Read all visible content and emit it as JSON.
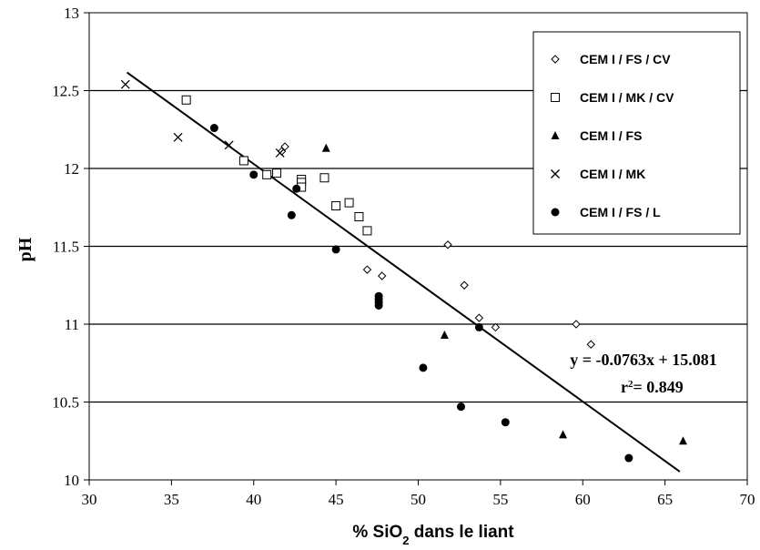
{
  "chart_data": {
    "type": "scatter",
    "xlabel_parts": [
      "% SiO",
      "2",
      " dans le liant"
    ],
    "ylabel": "pH",
    "xlim": [
      30,
      70
    ],
    "ylim": [
      10,
      13
    ],
    "xticks": [
      30,
      35,
      40,
      45,
      50,
      55,
      60,
      65,
      70
    ],
    "yticks": [
      "10",
      "10.5",
      "11",
      "11.5",
      "12",
      "12.5",
      "13"
    ],
    "xtick_labels": [
      "30",
      "35",
      "40",
      "45",
      "50",
      "55",
      "60",
      "65",
      "70"
    ],
    "horizontal_gridlines": true,
    "legend_position": "top-right",
    "series": [
      {
        "name": "CEM I / FS / CV",
        "marker": "diamond-open",
        "points": [
          [
            41.7,
            12.11
          ],
          [
            41.9,
            12.14
          ],
          [
            46.9,
            11.35
          ],
          [
            47.8,
            11.31
          ],
          [
            51.8,
            11.51
          ],
          [
            52.8,
            11.25
          ],
          [
            53.7,
            11.04
          ],
          [
            54.7,
            10.98
          ],
          [
            59.6,
            11.0
          ],
          [
            60.5,
            10.87
          ]
        ]
      },
      {
        "name": "CEM I / MK / CV",
        "marker": "square-open",
        "points": [
          [
            35.9,
            12.44
          ],
          [
            39.4,
            12.05
          ],
          [
            40.8,
            11.96
          ],
          [
            41.4,
            11.97
          ],
          [
            42.9,
            11.93
          ],
          [
            42.9,
            11.91
          ],
          [
            42.9,
            11.88
          ],
          [
            44.3,
            11.94
          ],
          [
            45.0,
            11.76
          ],
          [
            45.8,
            11.78
          ],
          [
            46.4,
            11.69
          ],
          [
            46.9,
            11.6
          ]
        ]
      },
      {
        "name": "CEM I / FS",
        "marker": "triangle-filled",
        "points": [
          [
            44.4,
            12.13
          ],
          [
            51.6,
            10.93
          ],
          [
            58.8,
            10.29
          ],
          [
            66.1,
            10.25
          ]
        ]
      },
      {
        "name": "CEM I / MK",
        "marker": "cross",
        "points": [
          [
            32.2,
            12.54
          ],
          [
            35.4,
            12.2
          ],
          [
            38.5,
            12.15
          ],
          [
            41.6,
            12.1
          ]
        ]
      },
      {
        "name": "CEM I / FS / L",
        "marker": "circle-filled",
        "points": [
          [
            37.6,
            12.26
          ],
          [
            40.0,
            11.96
          ],
          [
            42.3,
            11.7
          ],
          [
            42.6,
            11.87
          ],
          [
            45.0,
            11.48
          ],
          [
            47.6,
            11.18
          ],
          [
            47.6,
            11.16
          ],
          [
            47.6,
            11.14
          ],
          [
            47.6,
            11.12
          ],
          [
            50.3,
            10.72
          ],
          [
            52.6,
            10.47
          ],
          [
            53.7,
            10.98
          ],
          [
            55.3,
            10.37
          ],
          [
            62.8,
            10.14
          ]
        ]
      }
    ],
    "trendline": {
      "slope": -0.0763,
      "intercept": 15.081,
      "x_range": [
        32.3,
        65.9
      ]
    },
    "annotations": {
      "equation": "y = -0.0763x + 15.081",
      "r2_prefix": "r",
      "r2_sup": "2",
      "r2_suffix": "= 0.849"
    }
  }
}
